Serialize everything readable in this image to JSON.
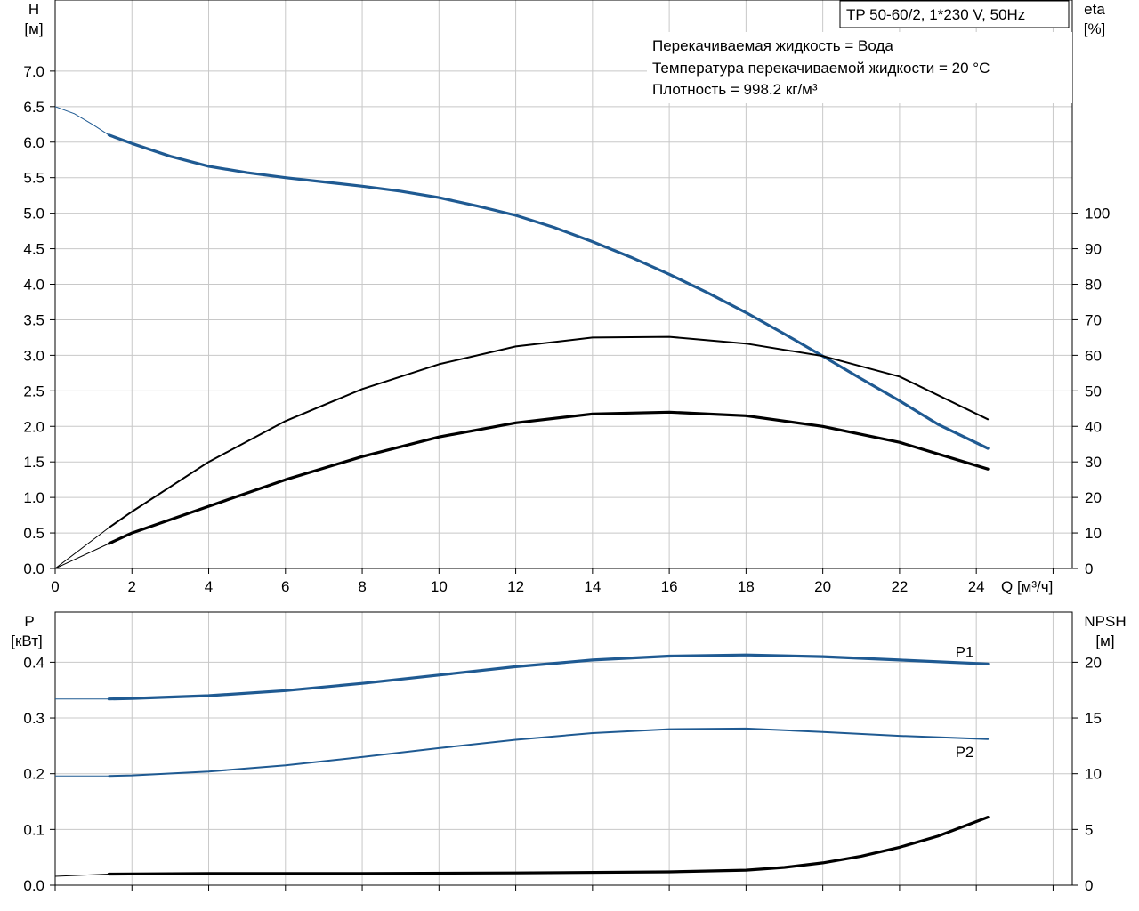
{
  "chart_data": [
    {
      "type": "line",
      "panel": "head-efficiency",
      "title": "TP 50-60/2, 1*230 V, 50Hz",
      "info_lines": [
        "Перекачиваемая жидкость = Вода",
        "Температура перекачиваемой жидкости = 20 °C",
        "Плотность = 998.2 кг/м³"
      ],
      "xlabel": "Q [м³/ч]",
      "xlim": [
        0,
        26.5
      ],
      "x_ticks": [
        0,
        2,
        4,
        6,
        8,
        10,
        12,
        14,
        16,
        18,
        20,
        22,
        24
      ],
      "x_tick_labels": [
        "0",
        "2",
        "4",
        "6",
        "8",
        "10",
        "12",
        "14",
        "16",
        "18",
        "20",
        "22",
        "24"
      ],
      "ylabel_left": [
        "H",
        "[м]"
      ],
      "ylim_left": [
        0,
        8.0
      ],
      "y_left_ticks": [
        0,
        0.5,
        1.0,
        1.5,
        2.0,
        2.5,
        3.0,
        3.5,
        4.0,
        4.5,
        5.0,
        5.5,
        6.0,
        6.5,
        7.0
      ],
      "y_left_tick_labels": [
        "0.0",
        "0.5",
        "1.0",
        "1.5",
        "2.0",
        "2.5",
        "3.0",
        "3.5",
        "4.0",
        "4.5",
        "5.0",
        "5.5",
        "6.0",
        "6.5",
        "7.0"
      ],
      "ylabel_right": [
        "eta",
        "[%]"
      ],
      "ylim_right": [
        0,
        160
      ],
      "y_right_ticks": [
        0,
        10,
        20,
        30,
        40,
        50,
        60,
        70,
        80,
        90,
        100
      ],
      "y_right_tick_labels": [
        "0",
        "10",
        "20",
        "30",
        "40",
        "50",
        "60",
        "70",
        "80",
        "90",
        "100"
      ],
      "grid": true,
      "series": [
        {
          "key": "H",
          "axis": "left",
          "color": "#1f5a92",
          "thick": true,
          "extension_x": [
            0,
            0.5,
            1.0,
            1.4
          ],
          "extension_y": [
            6.5,
            6.4,
            6.24,
            6.1
          ],
          "x": [
            1.4,
            2,
            3,
            4,
            5,
            6,
            7,
            8,
            9,
            10,
            11,
            12,
            13,
            14,
            15,
            16,
            17,
            18,
            19,
            20,
            21,
            22,
            23,
            24.3
          ],
          "y": [
            6.1,
            5.98,
            5.8,
            5.66,
            5.57,
            5.5,
            5.44,
            5.38,
            5.31,
            5.22,
            5.1,
            4.97,
            4.8,
            4.6,
            4.38,
            4.14,
            3.88,
            3.6,
            3.3,
            2.99,
            2.67,
            2.36,
            2.03,
            1.69
          ]
        },
        {
          "key": "eta_upper",
          "axis": "right",
          "color": "#000000",
          "thick": false,
          "extension_x": [
            0,
            1.4
          ],
          "extension_y": [
            0,
            11.5
          ],
          "x": [
            1.4,
            2,
            4,
            6,
            8,
            10,
            12,
            14,
            16,
            18,
            20,
            22,
            24.3
          ],
          "y": [
            11.5,
            16,
            30,
            41.5,
            50.5,
            57.5,
            62.5,
            65,
            65.2,
            63.3,
            59.8,
            54,
            42
          ]
        },
        {
          "key": "eta_lower",
          "axis": "right",
          "color": "#000000",
          "thick": true,
          "extension_x": [
            0,
            1.4
          ],
          "extension_y": [
            0,
            7
          ],
          "x": [
            1.4,
            2,
            4,
            6,
            8,
            10,
            12,
            14,
            16,
            18,
            20,
            22,
            24.3
          ],
          "y": [
            7,
            10,
            17.5,
            25,
            31.5,
            37,
            41,
            43.5,
            44,
            43,
            40,
            35.5,
            28
          ]
        }
      ]
    },
    {
      "type": "line",
      "panel": "power-npsh",
      "xlim": [
        0,
        26.5
      ],
      "ylabel_left": [
        "P",
        "[кВт]"
      ],
      "ylim_left": [
        0,
        0.49
      ],
      "y_left_ticks": [
        0,
        0.1,
        0.2,
        0.3,
        0.4
      ],
      "y_left_tick_labels": [
        "0.0",
        "0.1",
        "0.2",
        "0.3",
        "0.4"
      ],
      "ylabel_right": [
        "NPSH",
        "[м]"
      ],
      "ylim_right": [
        0,
        24.5
      ],
      "y_right_ticks": [
        0,
        5,
        10,
        15,
        20
      ],
      "y_right_tick_labels": [
        "0",
        "5",
        "10",
        "15",
        "20"
      ],
      "grid": true,
      "series": [
        {
          "name": "P1",
          "axis": "left",
          "color": "#1f5a92",
          "thick": true,
          "extension_x": [
            0,
            1.4
          ],
          "extension_y": [
            0.334,
            0.334
          ],
          "x": [
            1.4,
            2,
            4,
            6,
            8,
            10,
            12,
            14,
            16,
            18,
            20,
            22,
            24.3
          ],
          "y": [
            0.334,
            0.335,
            0.34,
            0.349,
            0.362,
            0.377,
            0.392,
            0.404,
            0.411,
            0.413,
            0.41,
            0.404,
            0.397
          ]
        },
        {
          "name": "P2",
          "axis": "left",
          "color": "#1f5a92",
          "thick": false,
          "extension_x": [
            0,
            1.4
          ],
          "extension_y": [
            0.196,
            0.196
          ],
          "x": [
            1.4,
            2,
            4,
            6,
            8,
            10,
            12,
            14,
            16,
            18,
            20,
            22,
            24.3
          ],
          "y": [
            0.196,
            0.197,
            0.204,
            0.215,
            0.23,
            0.246,
            0.261,
            0.273,
            0.28,
            0.281,
            0.275,
            0.268,
            0.262
          ]
        },
        {
          "key": "NPSH",
          "axis": "right",
          "color": "#000000",
          "thick": true,
          "extension_x": [
            0,
            1.4
          ],
          "extension_y": [
            0.8,
            1.0
          ],
          "x": [
            1.4,
            4,
            8,
            12,
            16,
            18,
            19,
            20,
            21,
            22,
            23,
            24.3
          ],
          "y": [
            1.0,
            1.05,
            1.05,
            1.1,
            1.2,
            1.35,
            1.6,
            2.0,
            2.6,
            3.4,
            4.4,
            6.1
          ]
        }
      ]
    }
  ]
}
